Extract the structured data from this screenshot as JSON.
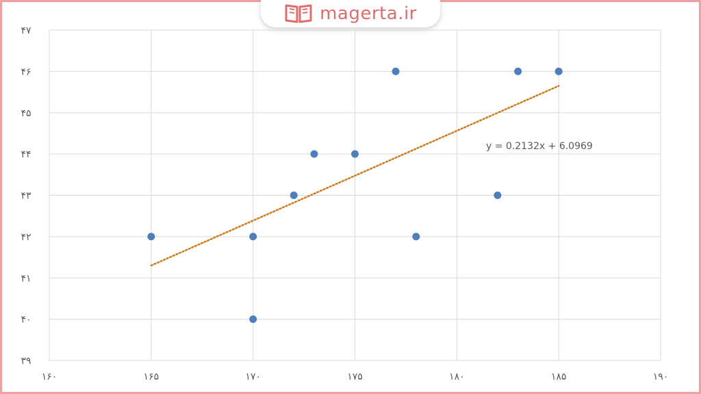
{
  "brand": {
    "name": "magerta.ir",
    "icon": "book-icon",
    "color": "#e26b6b"
  },
  "chart_data": {
    "type": "scatter",
    "title": "",
    "xlabel": "",
    "ylabel": "",
    "xlim": [
      160,
      190
    ],
    "ylim": [
      39,
      47
    ],
    "x_ticks": [
      160,
      165,
      170,
      175,
      180,
      185,
      190
    ],
    "y_ticks": [
      39,
      40,
      41,
      42,
      43,
      44,
      45,
      46,
      47
    ],
    "x_tick_labels": [
      "۱۶۰",
      "۱۶۵",
      "۱۷۰",
      "۱۷۵",
      "۱۸۰",
      "۱۸۵",
      "۱۹۰"
    ],
    "y_tick_labels": [
      "۳۹",
      "۴۰",
      "۴۱",
      "۴۲",
      "۴۳",
      "۴۴",
      "۴۵",
      "۴۶",
      "۴۷"
    ],
    "grid": true,
    "points": [
      {
        "x": 165,
        "y": 42
      },
      {
        "x": 170,
        "y": 42
      },
      {
        "x": 170,
        "y": 40
      },
      {
        "x": 172,
        "y": 43
      },
      {
        "x": 173,
        "y": 44
      },
      {
        "x": 175,
        "y": 44
      },
      {
        "x": 177,
        "y": 46
      },
      {
        "x": 178,
        "y": 42
      },
      {
        "x": 182,
        "y": 43
      },
      {
        "x": 183,
        "y": 46
      },
      {
        "x": 185,
        "y": 46
      }
    ],
    "trendline": {
      "type": "linear",
      "slope": 0.2132,
      "intercept": 6.0969,
      "x_range": [
        165,
        185
      ],
      "equation_label": "y = 0.2132x + 6.0969",
      "style": "dotted"
    },
    "colors": {
      "points": "#4e7fbc",
      "trendline": "#d27a18",
      "grid": "#d9d9d9"
    }
  }
}
